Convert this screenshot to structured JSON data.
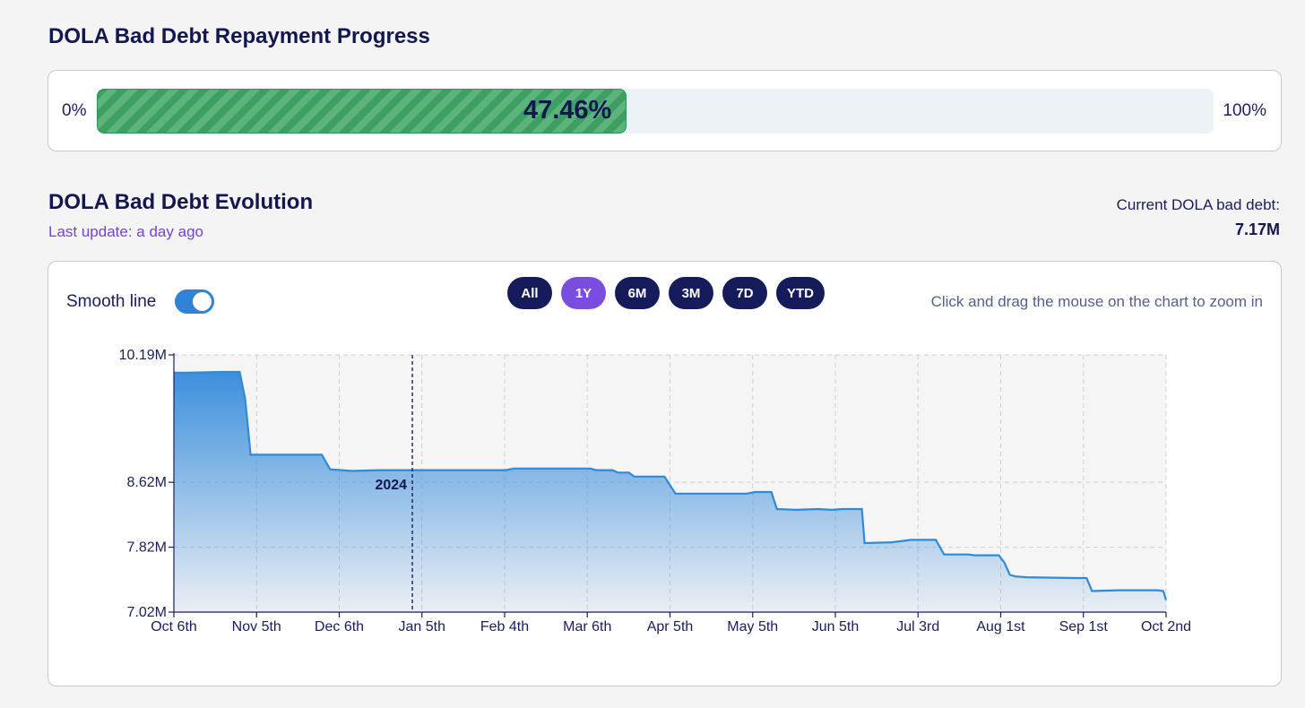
{
  "repayment": {
    "title": "DOLA Bad Debt Repayment Progress",
    "min_label": "0%",
    "max_label": "100%",
    "progress_value": 47.46,
    "progress_text": "47.46%"
  },
  "evolution": {
    "title": "DOLA Bad Debt Evolution",
    "last_update": "Last update: a day ago",
    "current_label": "Current DOLA bad debt:",
    "current_value": "7.17M"
  },
  "controls": {
    "smooth_label": "Smooth line",
    "smooth_on": true,
    "ranges": [
      {
        "label": "All",
        "active": false
      },
      {
        "label": "1Y",
        "active": true
      },
      {
        "label": "6M",
        "active": false
      },
      {
        "label": "3M",
        "active": false
      },
      {
        "label": "7D",
        "active": false
      },
      {
        "label": "YTD",
        "active": false
      }
    ],
    "hint": "Click and drag the mouse on the chart to zoom in"
  },
  "colors": {
    "line": "#2f8ad8",
    "area_top": "#3d8fdc",
    "progress_fill": "#3d9f62",
    "active_range": "#7a4ce0",
    "range_button": "#161b5c"
  },
  "chart_data": {
    "type": "area",
    "title": "",
    "xlabel": "",
    "ylabel": "",
    "x_ticks": [
      "Oct 6th",
      "Nov 5th",
      "Dec 6th",
      "Jan 5th",
      "Feb 4th",
      "Mar 6th",
      "Apr 5th",
      "May 5th",
      "Jun 5th",
      "Jul 3rd",
      "Aug 1st",
      "Sep 1st",
      "Oct 2nd"
    ],
    "y_ticks": [
      "7.02M",
      "7.82M",
      "8.62M",
      "10.19M"
    ],
    "y_tick_values": [
      7.02,
      7.82,
      8.62,
      10.19
    ],
    "ylim": [
      7.02,
      10.19
    ],
    "x_range": [
      "2023-10-06",
      "2024-10-02"
    ],
    "year_marker": {
      "label": "2024",
      "date": "2024-01-01"
    },
    "grid": true,
    "series": [
      {
        "values_in": "M",
        "points": [
          [
            "2023-10-06",
            9.97
          ],
          [
            "2023-10-11",
            9.97
          ],
          [
            "2023-10-24",
            9.98
          ],
          [
            "2023-10-30",
            9.98
          ],
          [
            "2023-11-01",
            9.65
          ],
          [
            "2023-11-03",
            8.96
          ],
          [
            "2023-11-24",
            8.96
          ],
          [
            "2023-11-29",
            8.96
          ],
          [
            "2023-12-02",
            8.78
          ],
          [
            "2023-12-10",
            8.76
          ],
          [
            "2023-12-20",
            8.77
          ],
          [
            "2024-02-04",
            8.77
          ],
          [
            "2024-02-07",
            8.79
          ],
          [
            "2024-03-06",
            8.79
          ],
          [
            "2024-03-08",
            8.77
          ],
          [
            "2024-03-14",
            8.77
          ],
          [
            "2024-03-16",
            8.74
          ],
          [
            "2024-03-20",
            8.74
          ],
          [
            "2024-03-22",
            8.69
          ],
          [
            "2024-04-02",
            8.69
          ],
          [
            "2024-04-06",
            8.48
          ],
          [
            "2024-05-02",
            8.48
          ],
          [
            "2024-05-05",
            8.5
          ],
          [
            "2024-05-11",
            8.5
          ],
          [
            "2024-05-13",
            8.29
          ],
          [
            "2024-05-20",
            8.28
          ],
          [
            "2024-05-28",
            8.29
          ],
          [
            "2024-06-02",
            8.28
          ],
          [
            "2024-06-06",
            8.29
          ],
          [
            "2024-06-13",
            8.29
          ],
          [
            "2024-06-14",
            7.87
          ],
          [
            "2024-06-24",
            7.88
          ],
          [
            "2024-07-01",
            7.91
          ],
          [
            "2024-07-10",
            7.91
          ],
          [
            "2024-07-13",
            7.73
          ],
          [
            "2024-07-22",
            7.73
          ],
          [
            "2024-07-24",
            7.72
          ],
          [
            "2024-08-02",
            7.72
          ],
          [
            "2024-08-04",
            7.63
          ],
          [
            "2024-08-06",
            7.48
          ],
          [
            "2024-08-08",
            7.46
          ],
          [
            "2024-08-12",
            7.45
          ],
          [
            "2024-08-30",
            7.44
          ],
          [
            "2024-09-03",
            7.44
          ],
          [
            "2024-09-05",
            7.28
          ],
          [
            "2024-09-15",
            7.29
          ],
          [
            "2024-09-29",
            7.29
          ],
          [
            "2024-10-01",
            7.28
          ],
          [
            "2024-10-02",
            7.17
          ]
        ]
      }
    ]
  }
}
